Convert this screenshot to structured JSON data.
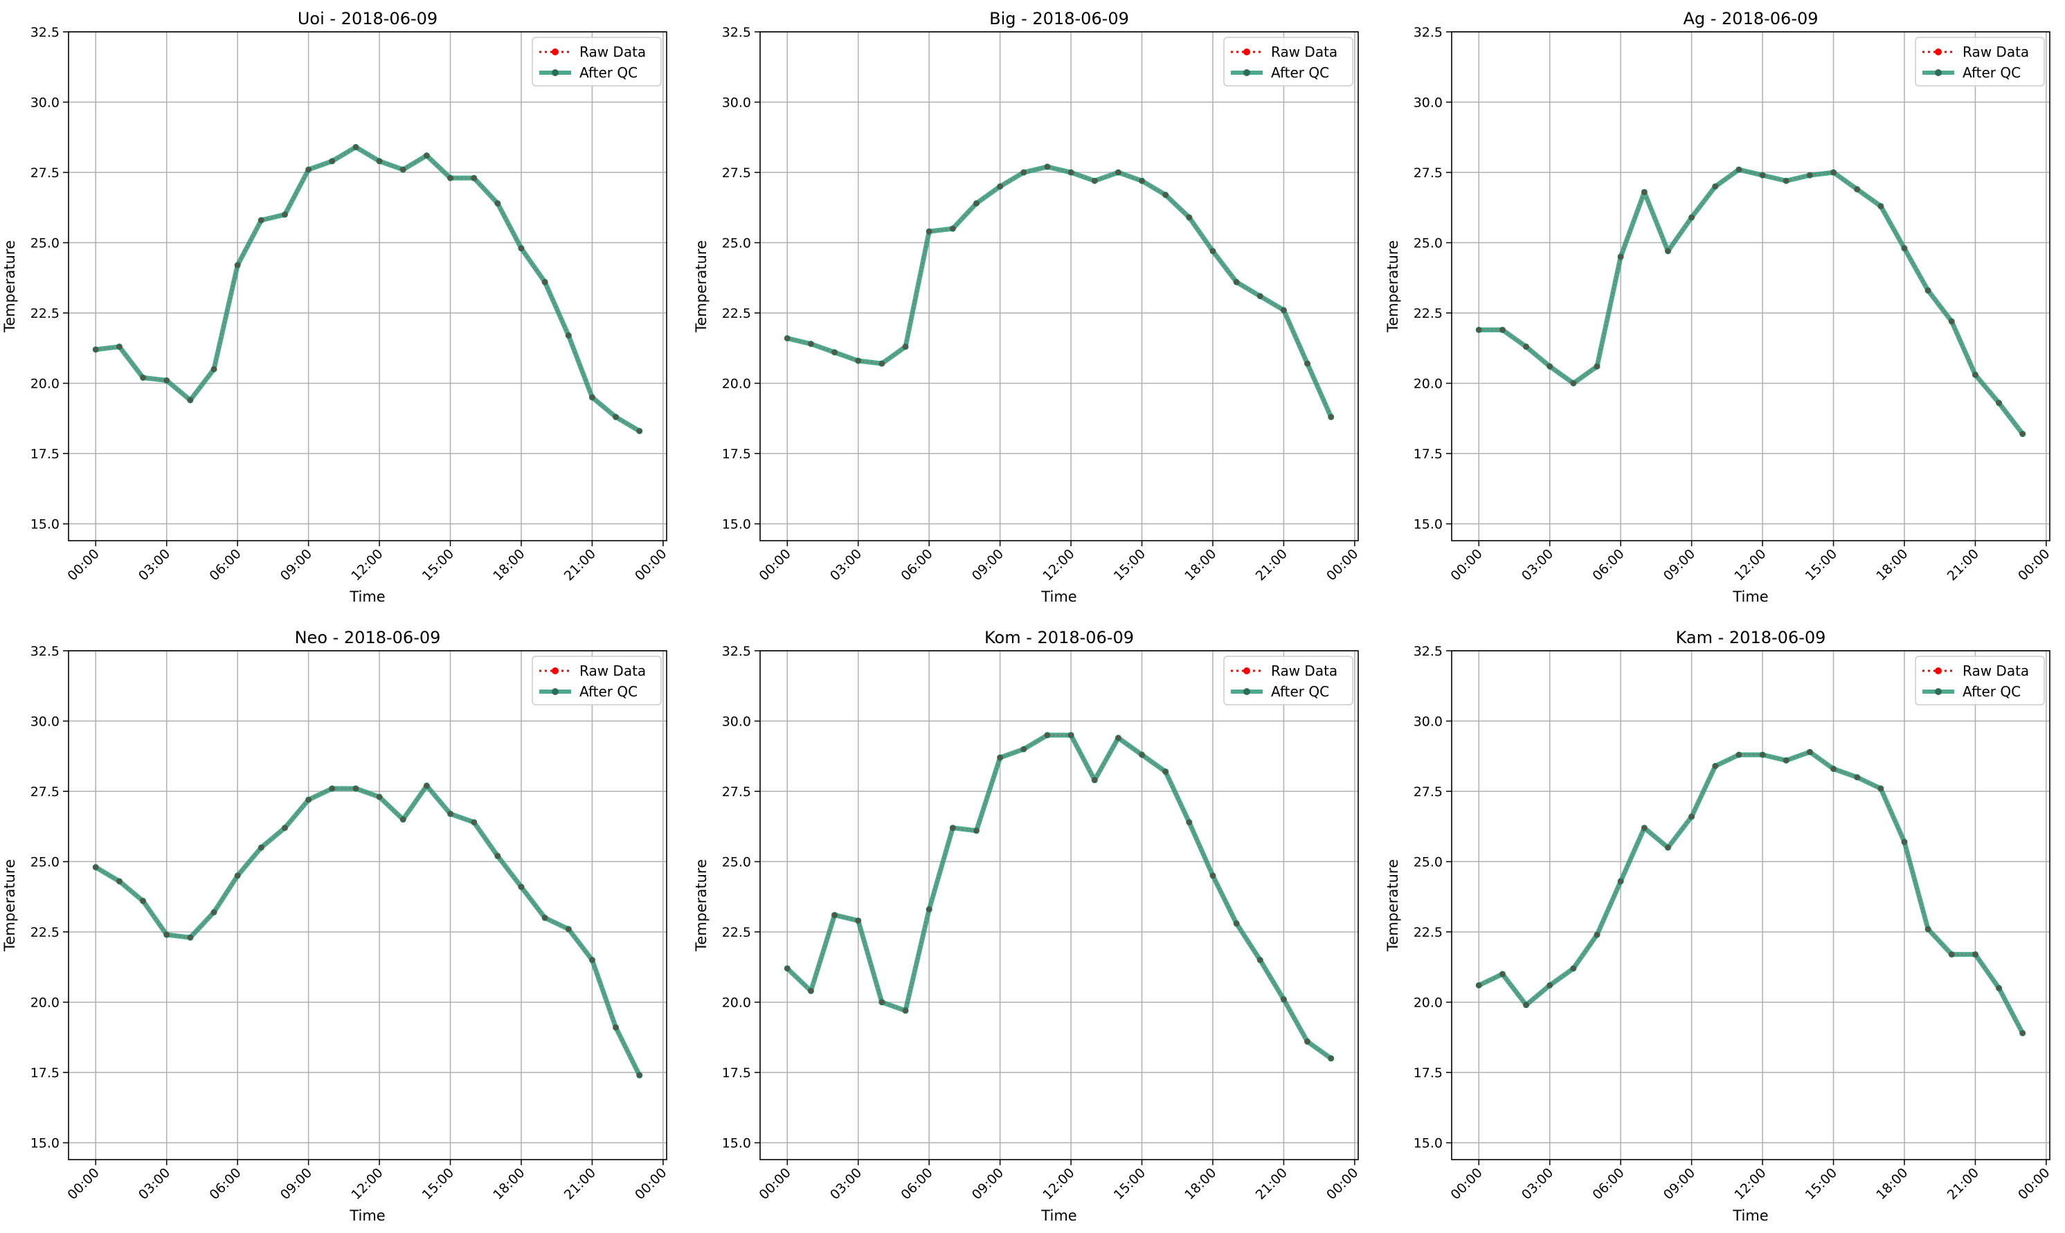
{
  "colors": {
    "raw": "#ff0000",
    "qc": "#2e9a7a",
    "qc_marker": "#2b6e55",
    "grid": "#b0b0b0",
    "axes": "#000000"
  },
  "chart_data": [
    {
      "type": "line",
      "title": "Uoi - 2018-06-09",
      "xlabel": "Time",
      "ylabel": "Temperature",
      "x_ticks": [
        "00:00",
        "03:00",
        "06:00",
        "09:00",
        "12:00",
        "15:00",
        "18:00",
        "21:00",
        "00:00"
      ],
      "y_ticks": [
        "15.0",
        "17.5",
        "20.0",
        "22.5",
        "25.0",
        "27.5",
        "30.0",
        "32.5"
      ],
      "ylim": [
        14.4,
        32.5
      ],
      "x_hours": [
        0,
        1,
        2,
        3,
        4,
        5,
        6,
        7,
        8,
        9,
        10,
        11,
        12,
        13,
        14,
        15,
        16,
        17,
        18,
        19,
        20,
        21,
        22,
        23
      ],
      "series": [
        {
          "name": "Raw Data",
          "style": "dotted-red",
          "values": [
            21.2,
            21.3,
            20.2,
            20.1,
            19.4,
            20.5,
            24.2,
            25.8,
            26.0,
            27.6,
            27.9,
            28.4,
            27.9,
            27.6,
            28.1,
            27.3,
            27.3,
            26.4,
            24.8,
            23.6,
            21.7,
            19.5,
            18.8,
            18.3
          ]
        },
        {
          "name": "After QC",
          "style": "solid-green",
          "values": [
            21.2,
            21.3,
            20.2,
            20.1,
            19.4,
            20.5,
            24.2,
            25.8,
            26.0,
            27.6,
            27.9,
            28.4,
            27.9,
            27.6,
            28.1,
            27.3,
            27.3,
            26.4,
            24.8,
            23.6,
            21.7,
            19.5,
            18.8,
            18.3
          ]
        }
      ],
      "legend_position": "upper right",
      "grid": true
    },
    {
      "type": "line",
      "title": "Big - 2018-06-09",
      "xlabel": "Time",
      "ylabel": "Temperature",
      "x_ticks": [
        "00:00",
        "03:00",
        "06:00",
        "09:00",
        "12:00",
        "15:00",
        "18:00",
        "21:00",
        "00:00"
      ],
      "y_ticks": [
        "15.0",
        "17.5",
        "20.0",
        "22.5",
        "25.0",
        "27.5",
        "30.0",
        "32.5"
      ],
      "ylim": [
        14.4,
        32.5
      ],
      "x_hours": [
        0,
        1,
        2,
        3,
        4,
        5,
        6,
        7,
        8,
        9,
        10,
        11,
        12,
        13,
        14,
        15,
        16,
        17,
        18,
        19,
        20,
        21,
        22,
        23
      ],
      "series": [
        {
          "name": "Raw Data",
          "style": "dotted-red",
          "values": [
            21.6,
            21.4,
            21.1,
            20.8,
            20.7,
            21.3,
            25.4,
            25.5,
            26.4,
            27.0,
            27.5,
            27.7,
            27.5,
            27.2,
            27.5,
            27.2,
            26.7,
            25.9,
            24.7,
            23.6,
            23.1,
            22.6,
            20.7,
            18.8
          ]
        },
        {
          "name": "After QC",
          "style": "solid-green",
          "values": [
            21.6,
            21.4,
            21.1,
            20.8,
            20.7,
            21.3,
            25.4,
            25.5,
            26.4,
            27.0,
            27.5,
            27.7,
            27.5,
            27.2,
            27.5,
            27.2,
            26.7,
            25.9,
            24.7,
            23.6,
            23.1,
            22.6,
            20.7,
            18.8
          ]
        }
      ],
      "legend_position": "upper right",
      "grid": true
    },
    {
      "type": "line",
      "title": "Ag - 2018-06-09",
      "xlabel": "Time",
      "ylabel": "Temperature",
      "x_ticks": [
        "00:00",
        "03:00",
        "06:00",
        "09:00",
        "12:00",
        "15:00",
        "18:00",
        "21:00",
        "00:00"
      ],
      "y_ticks": [
        "15.0",
        "17.5",
        "20.0",
        "22.5",
        "25.0",
        "27.5",
        "30.0",
        "32.5"
      ],
      "ylim": [
        14.4,
        32.5
      ],
      "x_hours": [
        0,
        1,
        2,
        3,
        4,
        5,
        6,
        7,
        8,
        9,
        10,
        11,
        12,
        13,
        14,
        15,
        16,
        17,
        18,
        19,
        20,
        21,
        22,
        23
      ],
      "series": [
        {
          "name": "Raw Data",
          "style": "dotted-red",
          "values": [
            21.9,
            21.9,
            21.3,
            20.6,
            20.0,
            20.6,
            24.5,
            26.8,
            24.7,
            25.9,
            27.0,
            27.6,
            27.4,
            27.2,
            27.4,
            27.5,
            26.9,
            26.3,
            24.8,
            23.3,
            22.2,
            20.3,
            19.3,
            18.2
          ]
        },
        {
          "name": "After QC",
          "style": "solid-green",
          "values": [
            21.9,
            21.9,
            21.3,
            20.6,
            20.0,
            20.6,
            24.5,
            26.8,
            24.7,
            25.9,
            27.0,
            27.6,
            27.4,
            27.2,
            27.4,
            27.5,
            26.9,
            26.3,
            24.8,
            23.3,
            22.2,
            20.3,
            19.3,
            18.2
          ]
        }
      ],
      "legend_position": "upper right",
      "grid": true
    },
    {
      "type": "line",
      "title": "Neo - 2018-06-09",
      "xlabel": "Time",
      "ylabel": "Temperature",
      "x_ticks": [
        "00:00",
        "03:00",
        "06:00",
        "09:00",
        "12:00",
        "15:00",
        "18:00",
        "21:00",
        "00:00"
      ],
      "y_ticks": [
        "15.0",
        "17.5",
        "20.0",
        "22.5",
        "25.0",
        "27.5",
        "30.0",
        "32.5"
      ],
      "ylim": [
        14.4,
        32.5
      ],
      "x_hours": [
        0,
        1,
        2,
        3,
        4,
        5,
        6,
        7,
        8,
        9,
        10,
        11,
        12,
        13,
        14,
        15,
        16,
        17,
        18,
        19,
        20,
        21,
        22,
        23
      ],
      "series": [
        {
          "name": "Raw Data",
          "style": "dotted-red",
          "values": [
            24.8,
            24.3,
            23.6,
            22.4,
            22.3,
            23.2,
            24.5,
            25.5,
            26.2,
            27.2,
            27.6,
            27.6,
            27.3,
            26.5,
            27.7,
            26.7,
            26.4,
            25.2,
            24.1,
            23.0,
            22.6,
            21.5,
            19.1,
            17.4
          ]
        },
        {
          "name": "After QC",
          "style": "solid-green",
          "values": [
            24.8,
            24.3,
            23.6,
            22.4,
            22.3,
            23.2,
            24.5,
            25.5,
            26.2,
            27.2,
            27.6,
            27.6,
            27.3,
            26.5,
            27.7,
            26.7,
            26.4,
            25.2,
            24.1,
            23.0,
            22.6,
            21.5,
            19.1,
            17.4
          ]
        }
      ],
      "legend_position": "upper right",
      "grid": true
    },
    {
      "type": "line",
      "title": "Kom - 2018-06-09",
      "xlabel": "Time",
      "ylabel": "Temperature",
      "x_ticks": [
        "00:00",
        "03:00",
        "06:00",
        "09:00",
        "12:00",
        "15:00",
        "18:00",
        "21:00",
        "00:00"
      ],
      "y_ticks": [
        "15.0",
        "17.5",
        "20.0",
        "22.5",
        "25.0",
        "27.5",
        "30.0",
        "32.5"
      ],
      "ylim": [
        14.4,
        32.5
      ],
      "x_hours": [
        0,
        1,
        2,
        3,
        4,
        5,
        6,
        7,
        8,
        9,
        10,
        11,
        12,
        13,
        14,
        15,
        16,
        17,
        18,
        19,
        20,
        21,
        22,
        23
      ],
      "series": [
        {
          "name": "Raw Data",
          "style": "dotted-red",
          "values": [
            21.2,
            20.4,
            23.1,
            22.9,
            20.0,
            19.7,
            23.3,
            26.2,
            26.1,
            28.7,
            29.0,
            29.5,
            29.5,
            27.9,
            29.4,
            28.8,
            28.2,
            26.4,
            24.5,
            22.8,
            21.5,
            20.1,
            18.6,
            18.0
          ]
        },
        {
          "name": "After QC",
          "style": "solid-green",
          "values": [
            21.2,
            20.4,
            23.1,
            22.9,
            20.0,
            19.7,
            23.3,
            26.2,
            26.1,
            28.7,
            29.0,
            29.5,
            29.5,
            27.9,
            29.4,
            28.8,
            28.2,
            26.4,
            24.5,
            22.8,
            21.5,
            20.1,
            18.6,
            18.0
          ]
        }
      ],
      "legend_position": "upper right",
      "grid": true
    },
    {
      "type": "line",
      "title": "Kam - 2018-06-09",
      "xlabel": "Time",
      "ylabel": "Temperature",
      "x_ticks": [
        "00:00",
        "03:00",
        "06:00",
        "09:00",
        "12:00",
        "15:00",
        "18:00",
        "21:00",
        "00:00"
      ],
      "y_ticks": [
        "15.0",
        "17.5",
        "20.0",
        "22.5",
        "25.0",
        "27.5",
        "30.0",
        "32.5"
      ],
      "ylim": [
        14.4,
        32.5
      ],
      "x_hours": [
        0,
        1,
        2,
        3,
        4,
        5,
        6,
        7,
        8,
        9,
        10,
        11,
        12,
        13,
        14,
        15,
        16,
        17,
        18,
        19,
        20,
        21,
        22,
        23
      ],
      "series": [
        {
          "name": "Raw Data",
          "style": "dotted-red",
          "values": [
            20.6,
            21.0,
            19.9,
            20.6,
            21.2,
            22.4,
            24.3,
            26.2,
            25.5,
            26.6,
            28.4,
            28.8,
            28.8,
            28.6,
            28.9,
            28.3,
            28.0,
            27.6,
            25.7,
            22.6,
            21.7,
            21.7,
            20.5,
            18.9
          ]
        },
        {
          "name": "After QC",
          "style": "solid-green",
          "values": [
            20.6,
            21.0,
            19.9,
            20.6,
            21.2,
            22.4,
            24.3,
            26.2,
            25.5,
            26.6,
            28.4,
            28.8,
            28.8,
            28.6,
            28.9,
            28.3,
            28.0,
            27.6,
            25.7,
            22.6,
            21.7,
            21.7,
            20.5,
            18.9
          ]
        }
      ],
      "legend_position": "upper right",
      "grid": true
    }
  ]
}
